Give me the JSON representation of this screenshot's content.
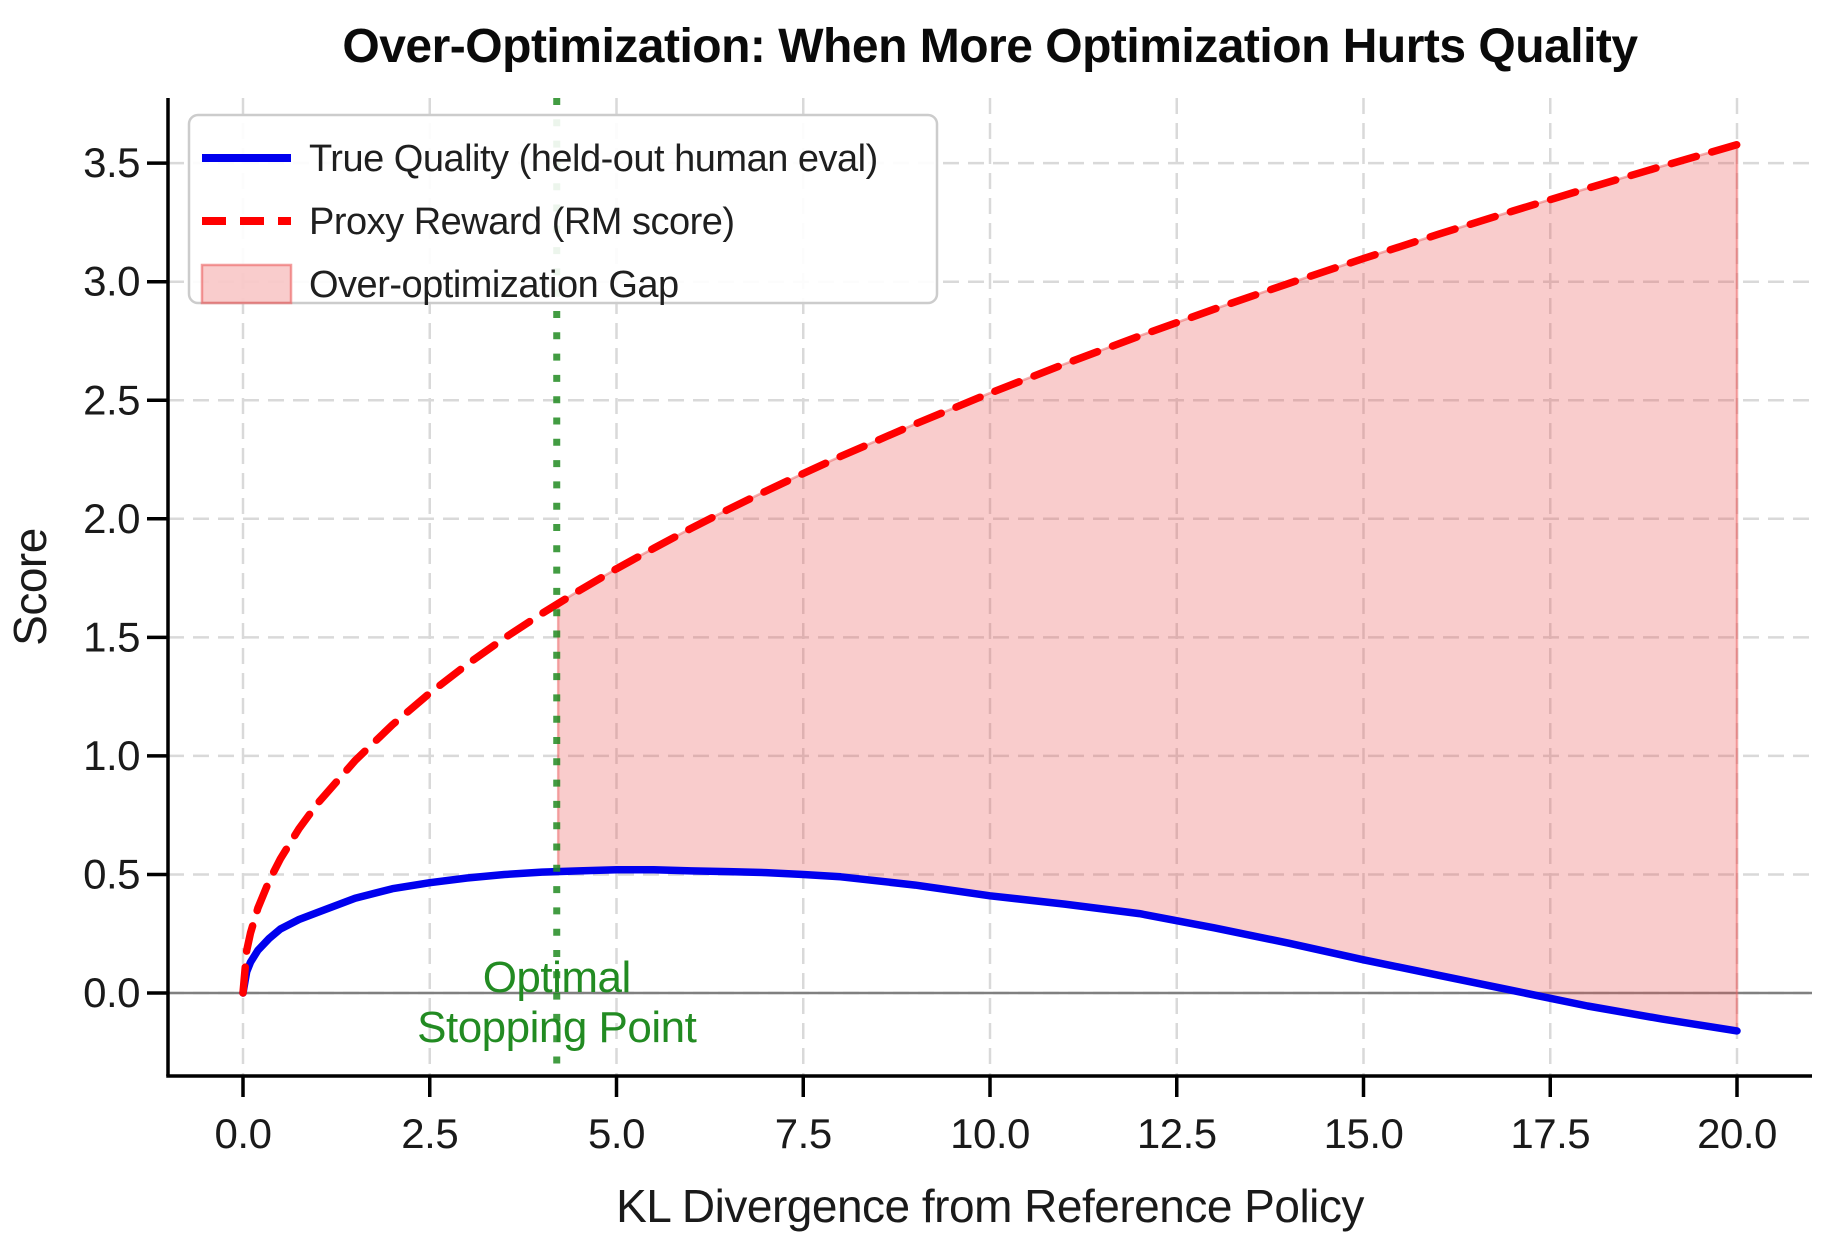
{
  "chart_data": {
    "type": "line",
    "title": "Over-Optimization: When More Optimization Hurts Quality",
    "xlabel": "KL Divergence from Reference Policy",
    "ylabel": "Score",
    "xlim": [
      -1.0,
      21.0
    ],
    "ylim": [
      -0.35,
      3.78
    ],
    "grid": true,
    "zero_line": true,
    "xticks": [
      {
        "value": 0.0,
        "label": "0.0"
      },
      {
        "value": 2.5,
        "label": "2.5"
      },
      {
        "value": 5.0,
        "label": "5.0"
      },
      {
        "value": 7.5,
        "label": "7.5"
      },
      {
        "value": 10.0,
        "label": "10.0"
      },
      {
        "value": 12.5,
        "label": "12.5"
      },
      {
        "value": 15.0,
        "label": "15.0"
      },
      {
        "value": 17.5,
        "label": "17.5"
      },
      {
        "value": 20.0,
        "label": "20.0"
      }
    ],
    "yticks": [
      {
        "value": 0.0,
        "label": "0.0"
      },
      {
        "value": 0.5,
        "label": "0.5"
      },
      {
        "value": 1.0,
        "label": "1.0"
      },
      {
        "value": 1.5,
        "label": "1.5"
      },
      {
        "value": 2.0,
        "label": "2.0"
      },
      {
        "value": 2.5,
        "label": "2.5"
      },
      {
        "value": 3.0,
        "label": "3.0"
      },
      {
        "value": 3.5,
        "label": "3.5"
      }
    ],
    "x": [
      0,
      0.05,
      0.1,
      0.2,
      0.35,
      0.5,
      0.75,
      1,
      1.5,
      2,
      2.5,
      3,
      3.5,
      4,
      4.5,
      5,
      5.5,
      6,
      6.5,
      7,
      7.5,
      8,
      9,
      10,
      11,
      12,
      13,
      14,
      15,
      16,
      17,
      18,
      19,
      20
    ],
    "series": [
      {
        "name": "True Quality (held-out human eval)",
        "color": "#0000ee",
        "line_style": "solid",
        "line_width": 7.5,
        "values": [
          0,
          0.09,
          0.13,
          0.18,
          0.23,
          0.27,
          0.31,
          0.34,
          0.4,
          0.44,
          0.465,
          0.485,
          0.5,
          0.51,
          0.515,
          0.52,
          0.52,
          0.515,
          0.512,
          0.508,
          0.5,
          0.49,
          0.455,
          0.41,
          0.375,
          0.335,
          0.275,
          0.21,
          0.14,
          0.075,
          0.01,
          -0.055,
          -0.11,
          -0.16
        ]
      },
      {
        "name": "Proxy Reward (RM score)",
        "color": "#ff0000",
        "line_style": "dashed",
        "line_width": 7.5,
        "values": [
          0,
          0.179,
          0.253,
          0.358,
          0.473,
          0.566,
          0.693,
          0.8,
          0.98,
          1.131,
          1.265,
          1.386,
          1.497,
          1.6,
          1.697,
          1.789,
          1.876,
          1.96,
          2.04,
          2.117,
          2.191,
          2.263,
          2.4,
          2.53,
          2.653,
          2.771,
          2.884,
          2.993,
          3.098,
          3.2,
          3.298,
          3.394,
          3.487,
          3.578
        ]
      }
    ],
    "gap_region": {
      "label": "Over-optimization Gap",
      "x_start": 4.22,
      "x_end": 20,
      "fill_color": "rgba(235,85,85,0.3)",
      "edge_color": "rgba(235,95,95,0.5)"
    },
    "optimal_line": {
      "x": 4.2,
      "color": "#228b22",
      "style": "dotted",
      "opacity": 0.85
    },
    "annotation": {
      "lines": [
        "Optimal",
        "Stopping Point"
      ],
      "x": 4.2,
      "color": "#228b22"
    },
    "legend": {
      "position": "upper left",
      "entries": [
        {
          "label": "True Quality (held-out human eval)",
          "swatch": "line-solid",
          "color": "#0000ee"
        },
        {
          "label": "Proxy Reward (RM score)",
          "swatch": "line-dashed",
          "color": "#ff0000"
        },
        {
          "label": "Over-optimization Gap",
          "swatch": "patch",
          "color": "rgba(235,85,85,0.3)",
          "edge": "rgba(235,95,95,0.6)"
        }
      ]
    },
    "colors": {
      "grid": "#d9d9d9",
      "zero_line": "#808080",
      "spine": "#000000",
      "text": "#1a1a1a",
      "legend_border": "#cccccc"
    }
  }
}
